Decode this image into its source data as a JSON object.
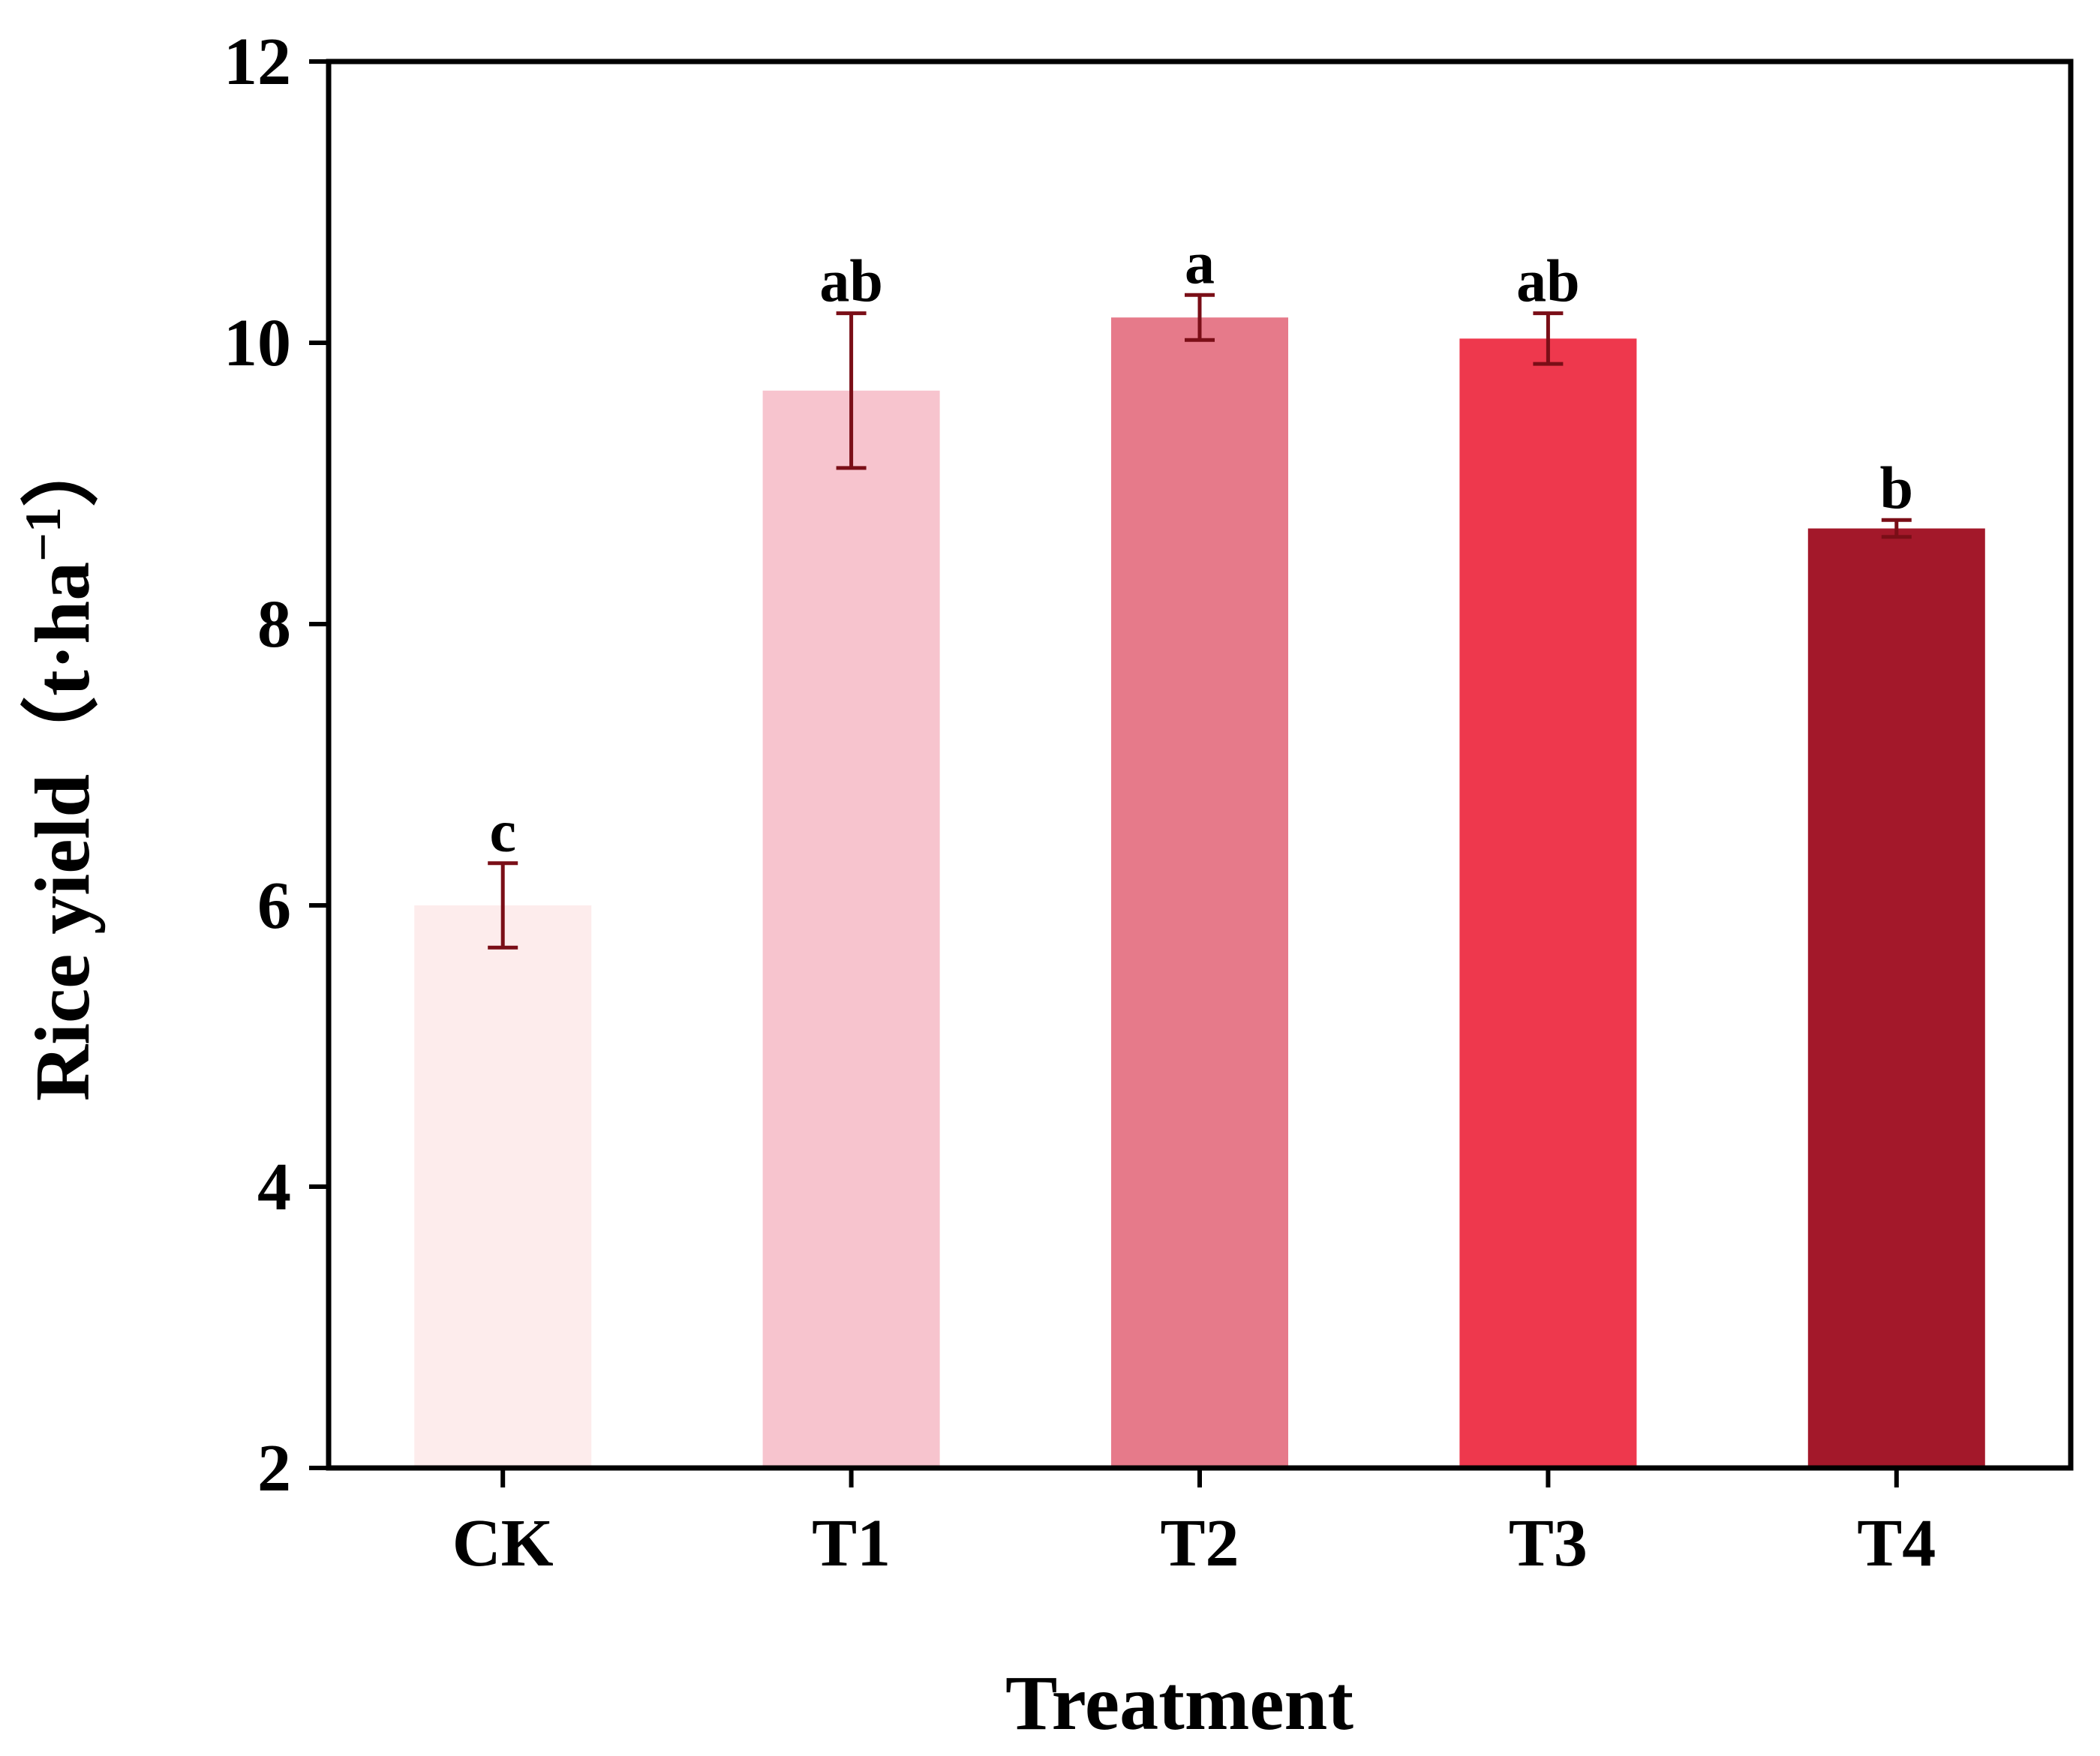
{
  "chart_data": {
    "type": "bar",
    "title": "",
    "xlabel": "Treatment",
    "ylabel": "Rice yield（t·ha",
    "ylabel_superscript": "−1",
    "ylabel_close": "）",
    "categories": [
      "CK",
      "T1",
      "T2",
      "T3",
      "T4"
    ],
    "values": [
      6.0,
      9.66,
      10.18,
      10.03,
      8.68
    ],
    "errors": [
      0.3,
      0.55,
      0.16,
      0.18,
      0.06
    ],
    "significance": [
      "c",
      "ab",
      "a",
      "ab",
      "b"
    ],
    "colors": [
      "#fdecec",
      "#f7c4ce",
      "#e67a8a",
      "#ee384d",
      "#a3182a"
    ],
    "error_bar_color": "#7a0e17",
    "ylim": [
      2,
      12
    ],
    "yticks": [
      "2",
      "4",
      "6",
      "8",
      "10",
      "12"
    ],
    "ytick_values": [
      2,
      4,
      6,
      8,
      10,
      12
    ],
    "grid": false
  }
}
